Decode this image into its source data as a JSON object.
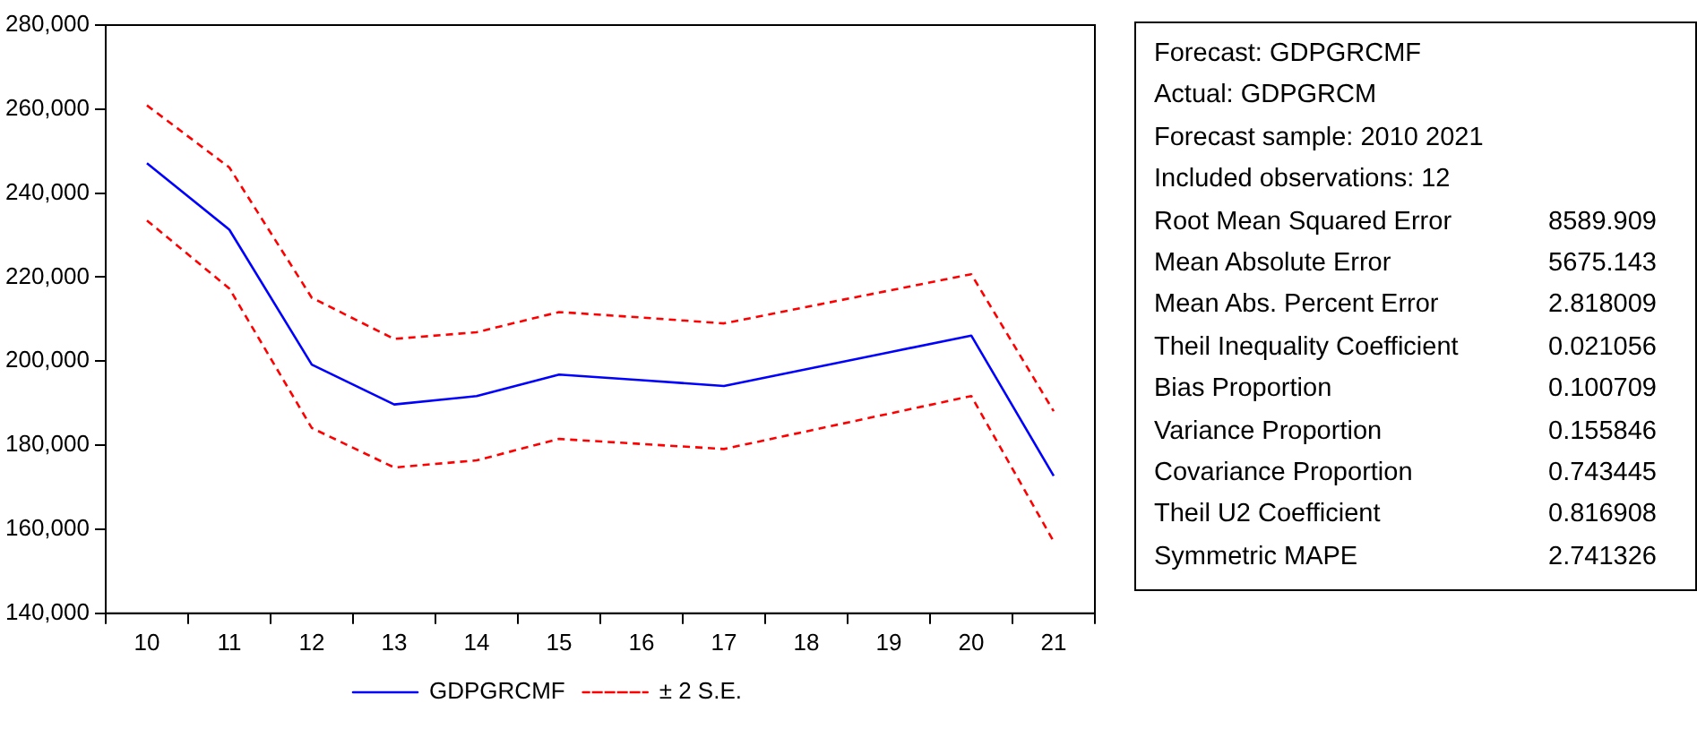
{
  "chart_data": [
    {
      "type": "line",
      "categories": [
        "10",
        "11",
        "12",
        "13",
        "14",
        "15",
        "16",
        "17",
        "18",
        "19",
        "20",
        "21"
      ],
      "series": [
        {
          "name": "GDPGRCMF",
          "color": "#0000ff",
          "line_style": "solid",
          "values": [
            247100,
            231300,
            199200,
            189700,
            191700,
            196800,
            195500,
            194100,
            198100,
            202100,
            206100,
            172700
          ]
        },
        {
          "name": "± 2 S.E.",
          "color": "#ff0000",
          "line_style": "dashed",
          "values": [
            260900,
            246100,
            215100,
            205300,
            206900,
            211700,
            210400,
            209000,
            212900,
            216800,
            220700,
            188100
          ]
        },
        {
          "color": "#ff0000",
          "line_style": "dashed",
          "values": [
            233500,
            217300,
            184100,
            174700,
            176400,
            181500,
            180300,
            179100,
            183300,
            187500,
            191700,
            157100
          ]
        }
      ],
      "ylim": [
        140000,
        280000
      ],
      "yticks": [
        {
          "value": 140000,
          "label": "140,000"
        },
        {
          "value": 160000,
          "label": "160,000"
        },
        {
          "value": 180000,
          "label": "180,000"
        },
        {
          "value": 200000,
          "label": "200,000"
        },
        {
          "value": 220000,
          "label": "220,000"
        },
        {
          "value": 240000,
          "label": "240,000"
        },
        {
          "value": 260000,
          "label": "260,000"
        },
        {
          "value": 280000,
          "label": "280,000"
        }
      ],
      "grid": false,
      "legend": "bottom",
      "marker": "none"
    },
    {
      "type": "other",
      "annotations": [
        "Forecast: GDPGRCMF",
        "Actual: GDPGRCM",
        "Forecast sample: 2010 2021",
        "Included observations: 12"
      ],
      "categories": [
        "Root Mean Squared Error",
        "Mean Absolute Error",
        "Mean Abs. Percent Error",
        "Theil Inequality Coefficient",
        "Bias Proportion",
        "Variance Proportion",
        "Covariance Proportion",
        "Theil U2 Coefficient",
        "Symmetric MAPE"
      ],
      "values": [
        8589.909,
        5675.143,
        2.818009,
        0.021056,
        0.100709,
        0.155846,
        0.743445,
        0.816908,
        2.741326
      ],
      "data_labels": true
    }
  ]
}
